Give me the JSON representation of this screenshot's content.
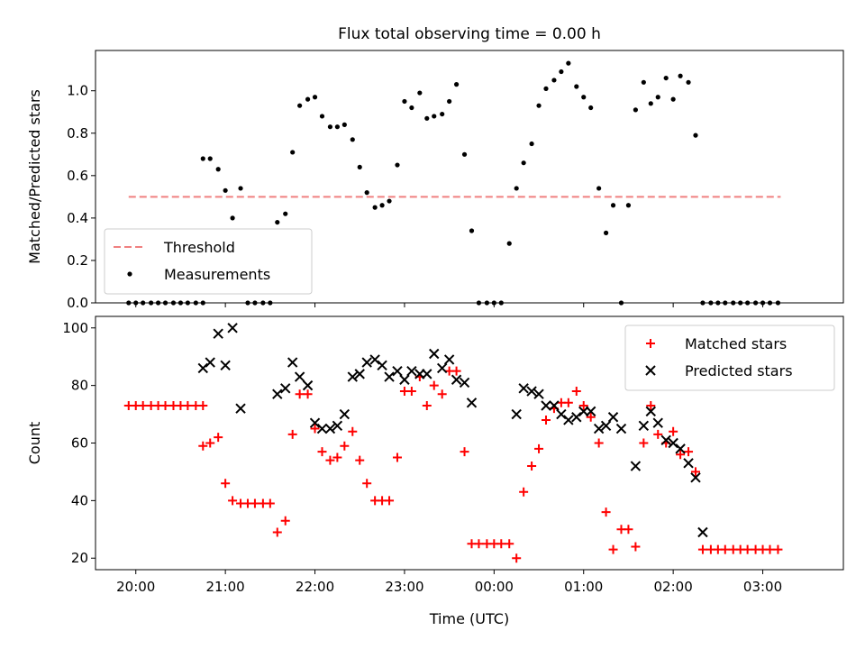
{
  "title": "Flux total observing time = 0.00 h",
  "chart_data": [
    {
      "type": "scatter",
      "title": "Flux total observing time = 0.00 h",
      "xlabel": "",
      "ylabel": "Matched/Predicted stars",
      "xlim": [
        -0.45,
        7.9
      ],
      "ylim": [
        0,
        1.19
      ],
      "x_ticks": [
        0,
        1,
        2,
        3,
        4,
        5,
        6,
        7
      ],
      "x_tick_labels": [],
      "y_ticks": [
        0.0,
        0.2,
        0.4,
        0.6,
        0.8,
        1.0
      ],
      "y_tick_labels": [
        "0.0",
        "0.2",
        "0.4",
        "0.6",
        "0.8",
        "1.0"
      ],
      "legend": {
        "placement": "lower-left"
      },
      "threshold": {
        "name": "Threshold",
        "y": 0.5,
        "x_start": -0.08,
        "x_end": 7.2,
        "color": "#f08080"
      },
      "series": [
        {
          "name": "Measurements",
          "marker": "dot",
          "color": "#000000",
          "x": [
            -0.08,
            0.0,
            0.08,
            0.17,
            0.25,
            0.33,
            0.42,
            0.5,
            0.58,
            0.67,
            0.75,
            0.75,
            0.83,
            0.92,
            1.0,
            1.08,
            1.17,
            1.25,
            1.33,
            1.42,
            1.5,
            1.58,
            1.67,
            1.75,
            1.83,
            1.92,
            2.0,
            2.08,
            2.17,
            2.25,
            2.33,
            2.42,
            2.5,
            2.58,
            2.67,
            2.75,
            2.83,
            2.92,
            3.0,
            3.08,
            3.17,
            3.25,
            3.33,
            3.42,
            3.5,
            3.58,
            3.67,
            3.75,
            3.83,
            3.92,
            4.0,
            4.08,
            4.17,
            4.25,
            4.33,
            4.42,
            4.5,
            4.58,
            4.67,
            4.75,
            4.83,
            4.92,
            5.0,
            5.08,
            5.17,
            5.25,
            5.33,
            5.42,
            5.5,
            5.58,
            5.67,
            5.75,
            5.83,
            5.92,
            6.0,
            6.08,
            6.17,
            6.25,
            6.33,
            6.42,
            6.5,
            6.58,
            6.67,
            6.75,
            6.83,
            6.92,
            7.0,
            7.08,
            7.17
          ],
          "y": [
            0,
            0,
            0,
            0,
            0,
            0,
            0,
            0,
            0,
            0,
            0,
            0.68,
            0.68,
            0.63,
            0.53,
            0.4,
            0.54,
            0,
            0,
            0,
            0,
            0.38,
            0.42,
            0.71,
            0.93,
            0.96,
            0.97,
            0.88,
            0.83,
            0.83,
            0.84,
            0.77,
            0.64,
            0.52,
            0.45,
            0.46,
            0.48,
            0.65,
            0.95,
            0.92,
            0.99,
            0.87,
            0.88,
            0.89,
            0.95,
            1.03,
            0.7,
            0.34,
            0,
            0,
            0,
            0,
            0.28,
            0.54,
            0.66,
            0.75,
            0.93,
            1.01,
            1.05,
            1.09,
            1.13,
            1.02,
            0.97,
            0.92,
            0.54,
            0.33,
            0.46,
            0,
            0.46,
            0.91,
            1.04,
            0.94,
            0.97,
            1.06,
            0.96,
            1.07,
            1.04,
            0.79,
            0,
            0,
            0,
            0,
            0,
            0,
            0,
            0,
            0,
            0,
            0
          ]
        }
      ]
    },
    {
      "type": "scatter",
      "title": "",
      "xlabel": "Time (UTC)",
      "ylabel": "Count",
      "xlim": [
        -0.45,
        7.9
      ],
      "ylim": [
        16,
        104
      ],
      "x_ticks": [
        0,
        1,
        2,
        3,
        4,
        5,
        6,
        7
      ],
      "x_tick_labels": [
        "20:00",
        "21:00",
        "22:00",
        "23:00",
        "00:00",
        "01:00",
        "02:00",
        "03:00"
      ],
      "y_ticks": [
        20,
        40,
        60,
        80,
        100
      ],
      "y_tick_labels": [
        "20",
        "40",
        "60",
        "80",
        "100"
      ],
      "legend": {
        "placement": "upper-right"
      },
      "series": [
        {
          "name": "Matched stars",
          "marker": "plus",
          "color": "#ff0000",
          "x": [
            -0.08,
            0.0,
            0.08,
            0.17,
            0.25,
            0.33,
            0.42,
            0.5,
            0.58,
            0.67,
            0.75,
            0.75,
            0.83,
            0.92,
            1.0,
            1.08,
            1.17,
            1.25,
            1.33,
            1.42,
            1.5,
            1.58,
            1.67,
            1.75,
            1.83,
            1.92,
            2.0,
            2.08,
            2.17,
            2.25,
            2.33,
            2.42,
            2.5,
            2.58,
            2.67,
            2.75,
            2.83,
            2.92,
            3.0,
            3.08,
            3.17,
            3.25,
            3.33,
            3.42,
            3.5,
            3.58,
            3.67,
            3.75,
            3.83,
            3.92,
            4.0,
            4.08,
            4.17,
            4.25,
            4.33,
            4.42,
            4.5,
            4.58,
            4.67,
            4.75,
            4.83,
            4.92,
            5.0,
            5.08,
            5.17,
            5.25,
            5.33,
            5.42,
            5.5,
            5.58,
            5.67,
            5.75,
            5.83,
            5.92,
            6.0,
            6.08,
            6.17,
            6.25,
            6.33,
            6.42,
            6.5,
            6.58,
            6.67,
            6.75,
            6.83,
            6.92,
            7.0,
            7.08,
            7.17
          ],
          "y": [
            73,
            73,
            73,
            73,
            73,
            73,
            73,
            73,
            73,
            73,
            73,
            59,
            60,
            62,
            46,
            40,
            39,
            39,
            39,
            39,
            39,
            29,
            33,
            63,
            77,
            77,
            65,
            57,
            54,
            55,
            59,
            64,
            54,
            46,
            40,
            40,
            40,
            55,
            78,
            78,
            83,
            73,
            80,
            77,
            85,
            85,
            57,
            25,
            25,
            25,
            25,
            25,
            25,
            20,
            43,
            52,
            58,
            68,
            72,
            74,
            74,
            78,
            73,
            69,
            60,
            36,
            23,
            30,
            30,
            24,
            60,
            73,
            63,
            60,
            64,
            56,
            57,
            50,
            23,
            23,
            23,
            23,
            23,
            23,
            23,
            23,
            23,
            23,
            23
          ]
        },
        {
          "name": "Predicted stars",
          "marker": "x",
          "color": "#000000",
          "x": [
            0.75,
            0.83,
            0.92,
            1.0,
            1.08,
            1.17,
            1.58,
            1.67,
            1.75,
            1.83,
            1.92,
            2.0,
            2.08,
            2.17,
            2.25,
            2.33,
            2.42,
            2.5,
            2.58,
            2.67,
            2.75,
            2.83,
            2.92,
            3.0,
            3.08,
            3.17,
            3.25,
            3.33,
            3.42,
            3.5,
            3.58,
            3.67,
            3.75,
            4.25,
            4.33,
            4.42,
            4.5,
            4.58,
            4.67,
            4.75,
            4.83,
            4.92,
            5.0,
            5.08,
            5.17,
            5.25,
            5.33,
            5.42,
            5.58,
            5.67,
            5.75,
            5.83,
            5.92,
            6.0,
            6.08,
            6.17,
            6.25,
            6.33
          ],
          "y": [
            86,
            88,
            98,
            87,
            100,
            72,
            77,
            79,
            88,
            83,
            80,
            67,
            65,
            65,
            66,
            70,
            83,
            84,
            88,
            89,
            87,
            83,
            85,
            82,
            85,
            84,
            84,
            91,
            86,
            89,
            82,
            81,
            74,
            70,
            79,
            78,
            77,
            73,
            73,
            70,
            68,
            69,
            71,
            71,
            65,
            66,
            69,
            65,
            52,
            66,
            71,
            67,
            61,
            60,
            58,
            53,
            48,
            29
          ]
        }
      ]
    }
  ]
}
